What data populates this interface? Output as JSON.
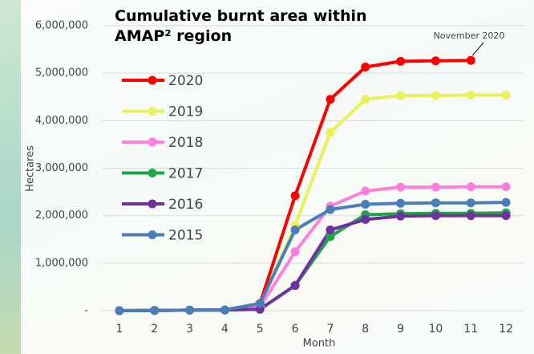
{
  "chart_data": {
    "type": "line",
    "title": "Cumulative burnt area within AMAP² region",
    "xlabel": "Month",
    "ylabel": "Hectares",
    "annotation": "November 2020",
    "x": [
      1,
      2,
      3,
      4,
      5,
      6,
      7,
      8,
      9,
      10,
      11,
      12
    ],
    "xlim": [
      0.5,
      12.5
    ],
    "xticks": [
      1,
      2,
      3,
      4,
      5,
      6,
      7,
      8,
      9,
      10,
      11,
      12
    ],
    "ylim": [
      0,
      6000000
    ],
    "yticks": [
      {
        "value": 0,
        "label": "-"
      },
      {
        "value": 1000000,
        "label": "1,000,000"
      },
      {
        "value": 2000000,
        "label": "2,000,000"
      },
      {
        "value": 3000000,
        "label": "3,000,000"
      },
      {
        "value": 4000000,
        "label": "4,000,000"
      },
      {
        "value": 5000000,
        "label": "5,000,000"
      },
      {
        "value": 6000000,
        "label": "6,000,000"
      }
    ],
    "grid": true,
    "legend": "upper left",
    "series": [
      {
        "name": "2020",
        "color": "#ff0000",
        "values": [
          0,
          5000,
          10000,
          15000,
          150000,
          2420000,
          4450000,
          5130000,
          5250000,
          5260000,
          5270000,
          null
        ]
      },
      {
        "name": "2019",
        "color": "#eaf25a",
        "values": [
          0,
          5000,
          10000,
          15000,
          100000,
          1800000,
          3750000,
          4450000,
          4530000,
          4530000,
          4540000,
          4540000
        ]
      },
      {
        "name": "2018",
        "color": "#ff80dc",
        "values": [
          0,
          5000,
          10000,
          15000,
          80000,
          1240000,
          2200000,
          2520000,
          2600000,
          2600000,
          2610000,
          2610000
        ]
      },
      {
        "name": "2017",
        "color": "#1ea64b",
        "values": [
          0,
          5000,
          10000,
          15000,
          30000,
          530000,
          1560000,
          2020000,
          2040000,
          2050000,
          2050000,
          2060000
        ]
      },
      {
        "name": "2016",
        "color": "#7030a0",
        "values": [
          0,
          5000,
          10000,
          15000,
          30000,
          530000,
          1700000,
          1920000,
          1990000,
          2000000,
          2000000,
          2000000
        ]
      },
      {
        "name": "2015",
        "color": "#4a7ebb",
        "values": [
          0,
          5000,
          10000,
          15000,
          150000,
          1700000,
          2130000,
          2240000,
          2260000,
          2270000,
          2270000,
          2280000
        ]
      }
    ]
  }
}
